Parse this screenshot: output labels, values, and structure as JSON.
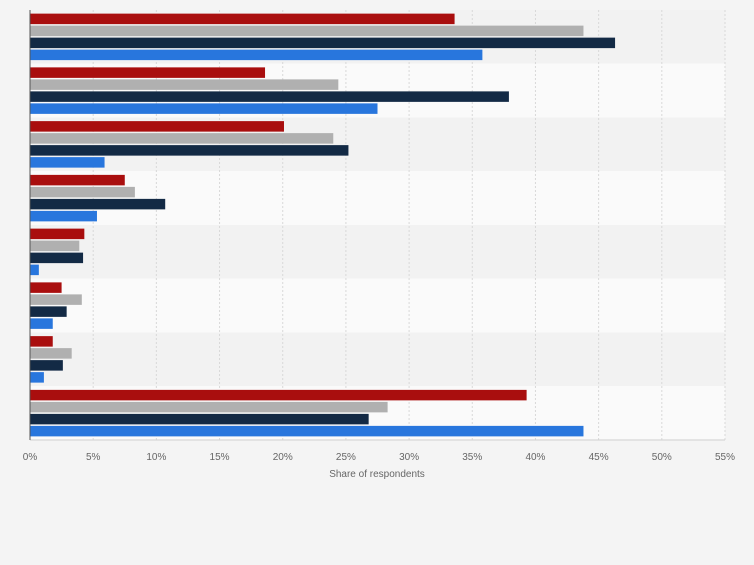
{
  "chart_data": {
    "type": "bar",
    "orientation": "horizontal",
    "xlabel": "Share of respondents",
    "xlim": [
      0,
      55
    ],
    "x_ticks": [
      "0%",
      "5%",
      "10%",
      "15%",
      "20%",
      "25%",
      "30%",
      "35%",
      "40%",
      "45%",
      "50%",
      "55%"
    ],
    "grid": true,
    "legend": "none",
    "group_count": 8,
    "series": [
      {
        "color": "#a90e0e",
        "values": [
          33.6,
          18.6,
          20.1,
          7.5,
          4.3,
          2.5,
          1.8,
          39.3
        ]
      },
      {
        "color": "#b0b0b0",
        "values": [
          43.8,
          24.4,
          24.0,
          8.3,
          3.9,
          4.1,
          3.3,
          28.3
        ]
      },
      {
        "color": "#132a45",
        "values": [
          46.3,
          37.9,
          25.2,
          10.7,
          4.2,
          2.9,
          2.6,
          26.8
        ]
      },
      {
        "color": "#2876dd",
        "values": [
          35.8,
          27.5,
          5.9,
          5.3,
          0.7,
          1.8,
          1.1,
          43.8
        ]
      }
    ]
  }
}
